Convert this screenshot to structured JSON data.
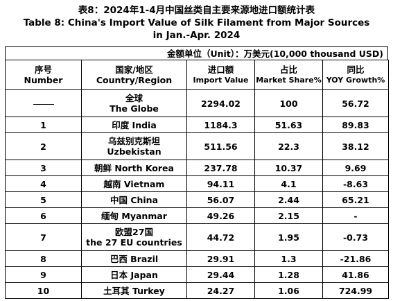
{
  "title": {
    "zh": "表8：2024年1-4月中国丝类自主要来源地进口额统计表",
    "en_line1": "Table 8: China's Import Value of Silk Filament from Major Sources",
    "en_line2": "in Jan.-Apr. 2024"
  },
  "unit": "金额单位（Unit）：万美元(10,000 thousand USD)",
  "columns": [
    {
      "zh": "序号",
      "en": "Number"
    },
    {
      "zh": "国家/地区",
      "en": "Country/Region"
    },
    {
      "zh": "进口额",
      "en": "Import Value"
    },
    {
      "zh": "占比",
      "en": "Market Share%"
    },
    {
      "zh": "同比",
      "en": "YOY Growth%"
    }
  ],
  "rows": [
    {
      "no": "——",
      "country_l1": "全球",
      "country_l2": "The Globe",
      "value": "2294.02",
      "share": "100",
      "yoy": "56.72"
    },
    {
      "no": "1",
      "country_l1": "印度 India",
      "country_l2": "",
      "value": "1184.3",
      "share": "51.63",
      "yoy": "89.83"
    },
    {
      "no": "2",
      "country_l1": "乌兹别克斯坦",
      "country_l2": "Uzbekistan",
      "value": "511.56",
      "share": "22.3",
      "yoy": "38.12"
    },
    {
      "no": "3",
      "country_l1": "朝鲜  North Korea",
      "country_l2": "",
      "value": "237.78",
      "share": "10.37",
      "yoy": "9.69"
    },
    {
      "no": "4",
      "country_l1": "越南 Vietnam",
      "country_l2": "",
      "value": "94.11",
      "share": "4.1",
      "yoy": "-8.63"
    },
    {
      "no": "5",
      "country_l1": "中国 China",
      "country_l2": "",
      "value": "56.07",
      "share": "2.44",
      "yoy": "65.21"
    },
    {
      "no": "6",
      "country_l1": "缅甸 Myanmar",
      "country_l2": "",
      "value": "49.26",
      "share": "2.15",
      "yoy": "-"
    },
    {
      "no": "7",
      "country_l1": "欧盟27国",
      "country_l2": "the 27 EU countries",
      "value": "44.72",
      "share": "1.95",
      "yoy": "-0.73"
    },
    {
      "no": "8",
      "country_l1": "巴西 Brazil",
      "country_l2": "",
      "value": "29.91",
      "share": "1.3",
      "yoy": "-21.86"
    },
    {
      "no": "9",
      "country_l1": "日本 Japan",
      "country_l2": "",
      "value": "29.44",
      "share": "1.28",
      "yoy": "41.86"
    },
    {
      "no": "10",
      "country_l1": "土耳其 Turkey",
      "country_l2": "",
      "value": "24.27",
      "share": "1.06",
      "yoy": "724.99"
    }
  ]
}
